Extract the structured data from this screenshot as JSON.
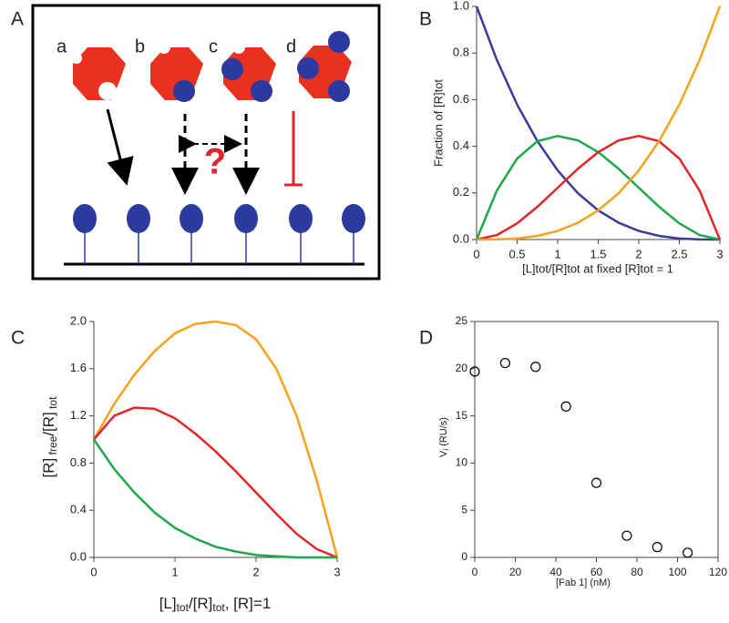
{
  "panel_labels": [
    "A",
    "B",
    "C",
    "D"
  ],
  "diagram": {
    "labels": [
      "a",
      "b",
      "c",
      "d"
    ],
    "question": "?"
  },
  "chart_data": [
    {
      "type": "line",
      "xlabel": "[L]tot/[R]tot at fixed [R]tot = 1",
      "ylabel": "Fraction of [R]tot",
      "x": [
        0,
        0.25,
        0.5,
        0.75,
        1,
        1.25,
        1.5,
        1.75,
        2,
        2.25,
        2.5,
        2.75,
        3
      ],
      "series": [
        {
          "color": "#3b3b98",
          "values": [
            1,
            0.7703,
            0.5787,
            0.4219,
            0.2963,
            0.1985,
            0.125,
            0.0723,
            0.037,
            0.0156,
            0.0046,
            0.0006,
            0
          ]
        },
        {
          "color": "#1fa84a",
          "values": [
            0,
            0.2101,
            0.3472,
            0.4219,
            0.4444,
            0.4253,
            0.375,
            0.3038,
            0.2222,
            0.1406,
            0.0694,
            0.0191,
            0
          ]
        },
        {
          "color": "#e0262b",
          "values": [
            0,
            0.0191,
            0.0694,
            0.1406,
            0.2222,
            0.3038,
            0.375,
            0.4253,
            0.4444,
            0.4219,
            0.3472,
            0.2101,
            0
          ]
        },
        {
          "color": "#f7a21b",
          "values": [
            0,
            0.0006,
            0.0046,
            0.0156,
            0.037,
            0.0723,
            0.125,
            0.1985,
            0.2963,
            0.4219,
            0.5787,
            0.7703,
            1
          ]
        }
      ],
      "xlim": [
        0,
        3
      ],
      "xticks": [
        0,
        0.5,
        1,
        1.5,
        2,
        2.5,
        3
      ],
      "ylim": [
        0,
        1
      ],
      "yticks": [
        {
          "value": 0,
          "label": "0.0"
        },
        0.2,
        0.4,
        0.6,
        0.8,
        {
          "value": 1,
          "label": "1.0"
        }
      ]
    },
    {
      "type": "line",
      "xlabel": [
        "[L]",
        "tot",
        "/[R]",
        "tot",
        ", [R]=1"
      ],
      "ylabel": [
        "[R]",
        " free",
        "/[R]",
        " tot"
      ],
      "x": [
        0,
        0.25,
        0.5,
        0.75,
        1,
        1.25,
        1.5,
        1.75,
        2,
        2.25,
        2.5,
        2.75,
        3
      ],
      "series": [
        {
          "color": "#f7a21b",
          "values": [
            1,
            1.3,
            1.55,
            1.75,
            1.9,
            1.98,
            2,
            1.97,
            1.85,
            1.6,
            1.2,
            0.65,
            0
          ]
        },
        {
          "color": "#e0262b",
          "values": [
            1,
            1.2,
            1.27,
            1.26,
            1.18,
            1.05,
            0.9,
            0.73,
            0.55,
            0.37,
            0.2,
            0.07,
            0
          ]
        },
        {
          "color": "#1fa84a",
          "values": [
            1,
            0.75,
            0.55,
            0.38,
            0.25,
            0.16,
            0.09,
            0.05,
            0.02,
            0.01,
            0,
            0,
            0
          ]
        }
      ],
      "xlim": [
        0,
        3
      ],
      "xticks": [
        0,
        1,
        2,
        3
      ],
      "ylim": [
        0,
        2
      ],
      "yticks": [
        {
          "value": 0,
          "label": "0.0"
        },
        0.4,
        0.8,
        1.2,
        1.6,
        {
          "value": 2,
          "label": "2.0"
        }
      ]
    },
    {
      "type": "scatter",
      "xlabel": "[Fab 1]  (nM)",
      "ylabel": [
        "V",
        "i",
        "  (RU/s)"
      ],
      "frame": true,
      "x": [
        0,
        15,
        30,
        45,
        60,
        75,
        90,
        105
      ],
      "series": [
        {
          "color": "#000000",
          "values": [
            19.7,
            20.6,
            20.2,
            16,
            7.9,
            2.3,
            1.1,
            0.5
          ]
        }
      ],
      "xlim": [
        0,
        120
      ],
      "xticks": [
        0,
        20,
        40,
        60,
        80,
        100,
        120
      ],
      "ylim": [
        0,
        25
      ],
      "yticks": [
        0,
        5,
        10,
        15,
        20,
        25
      ]
    }
  ]
}
